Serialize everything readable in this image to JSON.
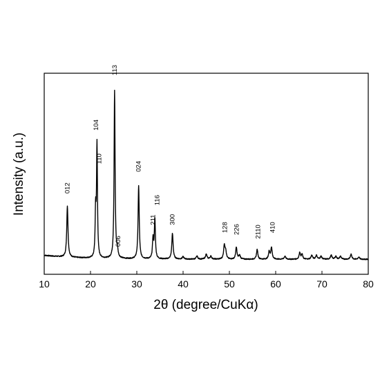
{
  "chart_data": {
    "type": "line",
    "title": "",
    "xlabel": "2θ (degree/CuKα)",
    "ylabel": "Intensity (a.u.)",
    "xlim": [
      10,
      80
    ],
    "ylim": [
      0,
      100
    ],
    "x_ticks": [
      10,
      20,
      30,
      40,
      50,
      60,
      70,
      80
    ],
    "y_ticks_shown": false,
    "grid": false,
    "legend": "none",
    "line_color": "#000000",
    "baseline": 2,
    "peaks": [
      {
        "x": 15.0,
        "y": 26,
        "w": 0.16
      },
      {
        "x": 21.1,
        "y": 23,
        "w": 0.12
      },
      {
        "x": 21.4,
        "y": 57,
        "w": 0.12
      },
      {
        "x": 25.2,
        "y": 85,
        "w": 0.13
      },
      {
        "x": 25.8,
        "y": 4,
        "w": 0.15
      },
      {
        "x": 30.4,
        "y": 37,
        "w": 0.15
      },
      {
        "x": 33.5,
        "y": 10,
        "w": 0.14
      },
      {
        "x": 33.9,
        "y": 20,
        "w": 0.14
      },
      {
        "x": 37.7,
        "y": 13,
        "w": 0.17
      },
      {
        "x": 40.0,
        "y": 1.2,
        "w": 0.2
      },
      {
        "x": 43.0,
        "y": 1.5,
        "w": 0.2
      },
      {
        "x": 45.0,
        "y": 2.5,
        "w": 0.2
      },
      {
        "x": 46.0,
        "y": 1.5,
        "w": 0.2
      },
      {
        "x": 48.9,
        "y": 7,
        "w": 0.17
      },
      {
        "x": 49.2,
        "y": 4,
        "w": 0.17
      },
      {
        "x": 51.5,
        "y": 6,
        "w": 0.17
      },
      {
        "x": 52.2,
        "y": 2,
        "w": 0.2
      },
      {
        "x": 56.0,
        "y": 5,
        "w": 0.17
      },
      {
        "x": 58.6,
        "y": 4,
        "w": 0.17
      },
      {
        "x": 59.1,
        "y": 6,
        "w": 0.17
      },
      {
        "x": 62.0,
        "y": 1.5,
        "w": 0.2
      },
      {
        "x": 65.2,
        "y": 3.5,
        "w": 0.17
      },
      {
        "x": 65.7,
        "y": 2.5,
        "w": 0.17
      },
      {
        "x": 67.8,
        "y": 2,
        "w": 0.2
      },
      {
        "x": 68.8,
        "y": 2,
        "w": 0.2
      },
      {
        "x": 69.8,
        "y": 1.5,
        "w": 0.2
      },
      {
        "x": 72.0,
        "y": 2,
        "w": 0.2
      },
      {
        "x": 73.0,
        "y": 1.5,
        "w": 0.2
      },
      {
        "x": 74.0,
        "y": 1.5,
        "w": 0.2
      },
      {
        "x": 76.3,
        "y": 2.5,
        "w": 0.2
      },
      {
        "x": 78.0,
        "y": 1,
        "w": 0.2
      }
    ],
    "annotations": [
      {
        "text": "012",
        "x": 15.0,
        "y": 34
      },
      {
        "text": "104",
        "x": 21.2,
        "y": 66
      },
      {
        "text": "110",
        "x": 21.9,
        "y": 49
      },
      {
        "text": "113",
        "x": 25.2,
        "y": 94
      },
      {
        "text": "006",
        "x": 26.0,
        "y": 7
      },
      {
        "text": "024",
        "x": 30.4,
        "y": 45
      },
      {
        "text": "211",
        "x": 33.5,
        "y": 18
      },
      {
        "text": "116",
        "x": 34.4,
        "y": 28
      },
      {
        "text": "300",
        "x": 37.7,
        "y": 18
      },
      {
        "text": "128",
        "x": 49.0,
        "y": 14
      },
      {
        "text": "226",
        "x": 51.6,
        "y": 13
      },
      {
        "text": "2110",
        "x": 56.2,
        "y": 11
      },
      {
        "text": "410",
        "x": 59.3,
        "y": 14
      }
    ]
  }
}
